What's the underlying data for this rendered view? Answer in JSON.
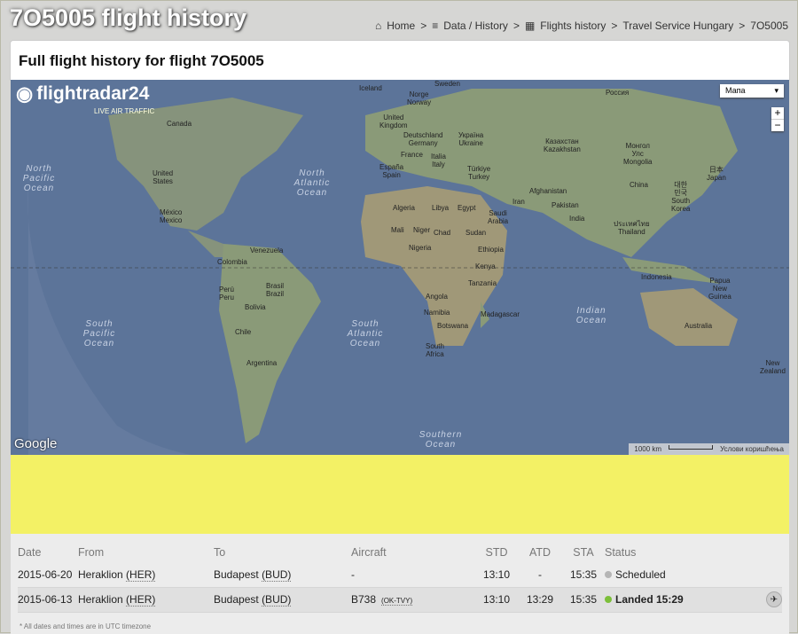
{
  "page": {
    "title": "7O5005 flight history"
  },
  "breadcrumb": {
    "home": "Home",
    "data": "Data / History",
    "flights": "Flights history",
    "airline": "Travel Service Hungary",
    "flight": "7O5005"
  },
  "panel": {
    "heading": "Full flight history for flight 7O5005"
  },
  "map": {
    "logo": "flightradar24",
    "logo_sub": "LIVE AIR TRAFFIC",
    "map_type": "Мапа",
    "zoom_in": "+",
    "zoom_out": "−",
    "google": "Google",
    "scale": "1000 km",
    "terms": "Услови коришћења",
    "labels": [
      "Iceland",
      "Sweden",
      "Norge Norway",
      "Россия",
      "United Kingdom",
      "Canada",
      "Deutschland Germany",
      "Україна Ukraine",
      "Казахстан Kazakhstan",
      "Монгол Улс Mongolia",
      "France",
      "Italia Italy",
      "España Spain",
      "Türkiye Turkey",
      "China",
      "日本 Japan",
      "대한민국 South Korea",
      "United States",
      "Algeria",
      "Libya",
      "Egypt",
      "Saudi Arabia",
      "Iran",
      "Afghanistan",
      "Pakistan",
      "India",
      "México Mexico",
      "Mali",
      "Niger",
      "Chad",
      "Sudan",
      "Nigeria",
      "Ethiopia",
      "Kenya",
      "ประเทศไทย Thailand",
      "Venezuela",
      "Colombia",
      "Perú Peru",
      "Brasil Brazil",
      "Bolivia",
      "Tanzania",
      "Angola",
      "Indonesia",
      "Papua New Guinea",
      "Chile",
      "Argentina",
      "Namibia",
      "Botswana",
      "Madagascar",
      "South Africa",
      "Australia",
      "New Zealand"
    ],
    "oceans": [
      "North Pacific Ocean",
      "North Atlantic Ocean",
      "South Pacific Ocean",
      "South Atlantic Ocean",
      "Indian Ocean",
      "Southern Ocean"
    ]
  },
  "table": {
    "headers": [
      "Date",
      "From",
      "To",
      "Aircraft",
      "STD",
      "ATD",
      "STA",
      "Status"
    ],
    "rows": [
      {
        "date": "2015-06-20",
        "from": "Heraklion",
        "from_code": "(HER)",
        "to": "Budapest",
        "to_code": "(BUD)",
        "aircraft": "-",
        "reg": "",
        "std": "13:10",
        "atd": "-",
        "sta": "15:35",
        "status": "Scheduled",
        "status_color": "#b5b5b5"
      },
      {
        "date": "2015-06-13",
        "from": "Heraklion",
        "from_code": "(HER)",
        "to": "Budapest",
        "to_code": "(BUD)",
        "aircraft": "B738",
        "reg": "(OK-TVY)",
        "std": "13:10",
        "atd": "13:29",
        "sta": "15:35",
        "status": "Landed 15:29",
        "status_color": "#7cbf3a"
      }
    ],
    "note": "* All dates and times are in UTC timezone"
  }
}
